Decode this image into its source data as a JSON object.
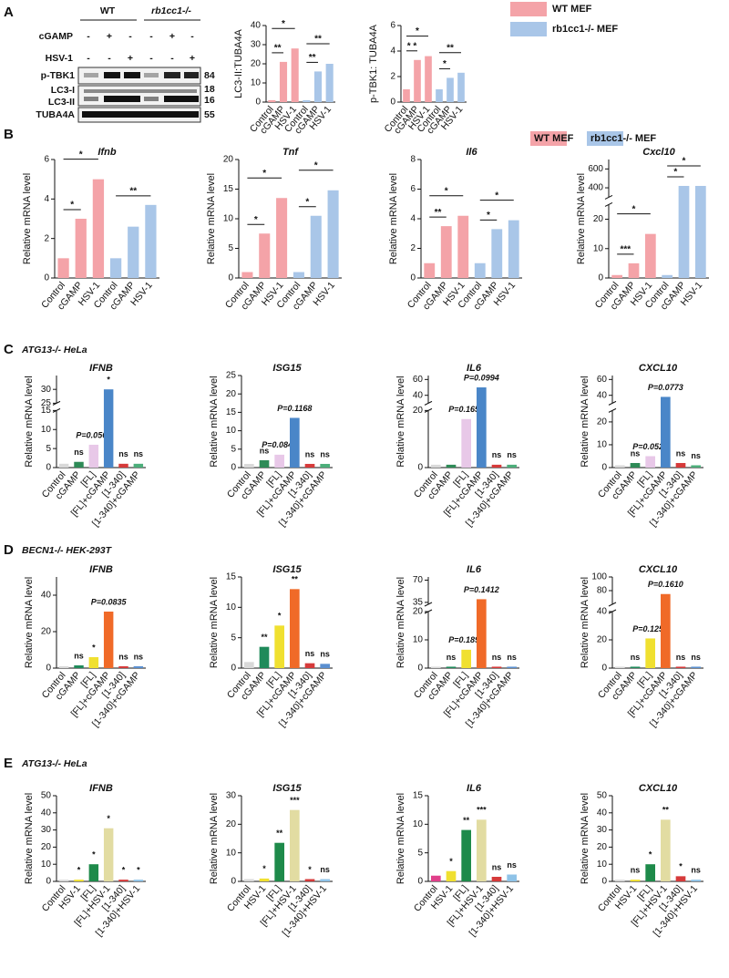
{
  "panels": [
    {
      "label": "A"
    },
    {
      "label": "B"
    },
    {
      "label": "C",
      "subtitle": "ATG13-/- HeLa"
    },
    {
      "label": "D",
      "subtitle": "BECN1-/- HEK-293T"
    },
    {
      "label": "E",
      "subtitle": "ATG13-/- HeLa"
    }
  ],
  "legend": [
    {
      "name": "WT MEF",
      "color": "#f4a3a8"
    },
    {
      "name": "rb1cc1-/- MEF",
      "color": "#a9c6e8"
    }
  ],
  "blot": {
    "groups": [
      "WT",
      "rb1cc1-/-"
    ],
    "treatments": [
      {
        "name": "cGAMP",
        "signs": [
          "-",
          "+",
          "-",
          "-",
          "+",
          "-"
        ]
      },
      {
        "name": "HSV-1",
        "signs": [
          "-",
          "-",
          "+",
          "-",
          "-",
          "+"
        ]
      }
    ],
    "bands": [
      "p-TBK1",
      "LC3-I",
      "LC3-II",
      "TUBA4A"
    ],
    "markers": [
      "84",
      "18",
      "16",
      "55"
    ]
  },
  "chart_data": [
    {
      "type": "bar",
      "ylabel": "LC3-II:TUBA4A",
      "categories": [
        "Control",
        "cGAMP",
        "HSV-1",
        "Control",
        "cGAMP",
        "HSV-1"
      ],
      "values": [
        1,
        21,
        28,
        1,
        16,
        20
      ],
      "colors": [
        "#f4a3a8",
        "#f4a3a8",
        "#f4a3a8",
        "#a9c6e8",
        "#a9c6e8",
        "#a9c6e8"
      ],
      "ylim": [
        0,
        40
      ],
      "yticks": [
        0,
        10,
        20,
        30,
        40
      ],
      "comparisons": [
        {
          "from": 0,
          "to": 1,
          "label": "**"
        },
        {
          "from": 0,
          "to": 2,
          "label": "*"
        },
        {
          "from": 3,
          "to": 4,
          "label": "**"
        },
        {
          "from": 3,
          "to": 5,
          "label": "**"
        }
      ]
    },
    {
      "type": "bar",
      "ylabel": "p-TBK1: TUBA4A",
      "categories": [
        "Control",
        "cGAMP",
        "HSV-1",
        "Control",
        "cGAMP",
        "HSV-1"
      ],
      "values": [
        1,
        3.3,
        3.6,
        1,
        1.9,
        2.3
      ],
      "colors": [
        "#f4a3a8",
        "#f4a3a8",
        "#f4a3a8",
        "#a9c6e8",
        "#a9c6e8",
        "#a9c6e8"
      ],
      "ylim": [
        0,
        6
      ],
      "yticks": [
        0,
        2,
        4,
        6
      ],
      "comparisons": [
        {
          "from": 0,
          "to": 1,
          "label": "* *"
        },
        {
          "from": 0,
          "to": 2,
          "label": "*"
        },
        {
          "from": 3,
          "to": 4,
          "label": "*"
        },
        {
          "from": 3,
          "to": 5,
          "label": "**"
        }
      ]
    },
    {
      "type": "bar",
      "title": "Ifnb",
      "ylabel": "Relative mRNA level",
      "categories": [
        "Control",
        "cGAMP",
        "HSV-1",
        "Control",
        "cGAMP",
        "HSV-1"
      ],
      "values": [
        1,
        3,
        5,
        1,
        2.6,
        3.7
      ],
      "colors": [
        "#f4a3a8",
        "#f4a3a8",
        "#f4a3a8",
        "#a9c6e8",
        "#a9c6e8",
        "#a9c6e8"
      ],
      "ylim": [
        0,
        6
      ],
      "yticks": [
        0,
        2,
        4,
        6
      ],
      "comparisons": [
        {
          "from": 0,
          "to": 1,
          "label": "*"
        },
        {
          "from": 0,
          "to": 2,
          "label": "*"
        },
        {
          "from": 3,
          "to": 5,
          "label": "**"
        }
      ]
    },
    {
      "type": "bar",
      "title": "Tnf",
      "ylabel": "Relative mRNA level",
      "categories": [
        "Control",
        "cGAMP",
        "HSV-1",
        "Control",
        "cGAMP",
        "HSV-1"
      ],
      "values": [
        1,
        7.5,
        13.5,
        1,
        10.5,
        14.8
      ],
      "colors": [
        "#f4a3a8",
        "#f4a3a8",
        "#f4a3a8",
        "#a9c6e8",
        "#a9c6e8",
        "#a9c6e8"
      ],
      "ylim": [
        0,
        20
      ],
      "yticks": [
        0,
        5,
        10,
        15,
        20
      ],
      "comparisons": [
        {
          "from": 0,
          "to": 1,
          "label": "*"
        },
        {
          "from": 0,
          "to": 2,
          "label": "*"
        },
        {
          "from": 3,
          "to": 4,
          "label": "*"
        },
        {
          "from": 3,
          "to": 5,
          "label": "*"
        }
      ]
    },
    {
      "type": "bar",
      "title": "Il6",
      "ylabel": "Relative mRNA level",
      "categories": [
        "Control",
        "cGAMP",
        "HSV-1",
        "Control",
        "cGAMP",
        "HSV-1"
      ],
      "values": [
        1,
        3.5,
        4.2,
        1,
        3.3,
        3.9
      ],
      "colors": [
        "#f4a3a8",
        "#f4a3a8",
        "#f4a3a8",
        "#a9c6e8",
        "#a9c6e8",
        "#a9c6e8"
      ],
      "ylim": [
        0,
        8
      ],
      "yticks": [
        0,
        2,
        4,
        6,
        8
      ],
      "comparisons": [
        {
          "from": 0,
          "to": 1,
          "label": "**"
        },
        {
          "from": 0,
          "to": 2,
          "label": "*"
        },
        {
          "from": 3,
          "to": 4,
          "label": "*"
        },
        {
          "from": 3,
          "to": 5,
          "label": "*"
        }
      ]
    },
    {
      "type": "bar",
      "title": "Cxcl10",
      "ylabel": "Relative mRNA level",
      "categories": [
        "Control",
        "cGAMP",
        "HSV-1",
        "Control",
        "cGAMP",
        "HSV-1"
      ],
      "values": [
        1,
        5,
        15,
        1,
        420,
        420
      ],
      "colors": [
        "#f4a3a8",
        "#f4a3a8",
        "#f4a3a8",
        "#a9c6e8",
        "#a9c6e8",
        "#a9c6e8"
      ],
      "ysegments": [
        {
          "lim": [
            0,
            25
          ],
          "ticks": [
            0,
            10,
            20
          ]
        },
        {
          "lim": [
            300,
            700
          ],
          "ticks": [
            400,
            600
          ]
        }
      ],
      "comparisons": [
        {
          "from": 0,
          "to": 1,
          "label": "***"
        },
        {
          "from": 0,
          "to": 2,
          "label": "*"
        },
        {
          "from": 3,
          "to": 4,
          "label": "*"
        },
        {
          "from": 3,
          "to": 5,
          "label": "*"
        }
      ]
    },
    {
      "type": "bar",
      "title": "IFNB",
      "ylabel": "Relative mRNA level",
      "categories": [
        "Control",
        "cGAMP",
        "[FL]",
        "[FL]+cGAMP",
        "[1-340]",
        "[1-340]+cGAMP"
      ],
      "values": [
        1,
        1.5,
        6,
        30,
        1,
        1
      ],
      "colors": [
        "#d9d9d9",
        "#2e8b57",
        "#e8c8e8",
        "#4a86c8",
        "#d63a3a",
        "#4cae7a"
      ],
      "ysegments": [
        {
          "lim": [
            0,
            15
          ],
          "ticks": [
            0,
            5,
            10,
            15
          ]
        },
        {
          "lim": [
            25,
            35
          ],
          "ticks": [
            25,
            30
          ]
        }
      ],
      "annotations": [
        null,
        "ns",
        "P=0.0565",
        "*",
        "ns",
        "ns"
      ]
    },
    {
      "type": "bar",
      "title": "ISG15",
      "ylabel": "Relative mRNA level",
      "categories": [
        "Control",
        "cGAMP",
        "[FL]",
        "[FL]+cGAMP",
        "[1-340]",
        "[1-340]+cGAMP"
      ],
      "values": [
        1,
        2,
        3.5,
        13.5,
        1,
        1
      ],
      "colors": [
        "#d9d9d9",
        "#2e8b57",
        "#e8c8e8",
        "#4a86c8",
        "#d63a3a",
        "#4cae7a"
      ],
      "ylim": [
        0,
        25
      ],
      "yticks": [
        0,
        5,
        10,
        15,
        20,
        25
      ],
      "annotations": [
        null,
        "ns",
        "P=0.0841",
        "P=0.1168",
        "ns",
        "ns"
      ]
    },
    {
      "type": "bar",
      "title": "IL6",
      "ylabel": "Relative mRNA level",
      "categories": [
        "Control",
        "cGAMP",
        "[FL]",
        "[FL]+cGAMP",
        "[1-340]",
        "[1-340]+cGAMP"
      ],
      "values": [
        1,
        1,
        17,
        50,
        1,
        1
      ],
      "colors": [
        "#d9d9d9",
        "#2e8b57",
        "#e8c8e8",
        "#4a86c8",
        "#d63a3a",
        "#4cae7a"
      ],
      "ysegments": [
        {
          "lim": [
            0,
            20
          ],
          "ticks": [
            0,
            20
          ]
        },
        {
          "lim": [
            30,
            65
          ],
          "ticks": [
            40,
            60
          ]
        }
      ],
      "annotations": [
        null,
        null,
        "P=0.1657",
        "P=0.0994",
        "ns",
        "ns"
      ]
    },
    {
      "type": "bar",
      "title": "CXCL10",
      "ylabel": "Relative mRNA level",
      "categories": [
        "Control",
        "cGAMP",
        "[FL]",
        "[FL]+cGAMP",
        "[1-340]",
        "[1-340]+cGAMP"
      ],
      "values": [
        1,
        2,
        5,
        38,
        2,
        1
      ],
      "colors": [
        "#d9d9d9",
        "#2e8b57",
        "#e8c8e8",
        "#4a86c8",
        "#d63a3a",
        "#4cae7a"
      ],
      "ysegments": [
        {
          "lim": [
            0,
            25
          ],
          "ticks": [
            0,
            10,
            20
          ]
        },
        {
          "lim": [
            30,
            65
          ],
          "ticks": [
            40,
            60
          ]
        }
      ],
      "annotations": [
        null,
        "ns",
        "P=0.0525",
        "P=0.0773",
        "ns",
        "ns"
      ]
    },
    {
      "type": "bar",
      "title": "IFNB",
      "ylabel": "Relative mRNA level",
      "categories": [
        "Control",
        "cGAMP",
        "[FL]",
        "[FL]+cGAMP",
        "[1-340]",
        "[1-340]+cGAMP"
      ],
      "values": [
        1,
        1.5,
        6,
        31,
        1,
        1
      ],
      "colors": [
        "#d9d9d9",
        "#1f8a5a",
        "#f0e030",
        "#f06a28",
        "#d63a3a",
        "#5a8fd0"
      ],
      "ylim": [
        0,
        50
      ],
      "yticks": [
        0,
        20,
        40
      ],
      "annotations": [
        null,
        "ns",
        "*",
        "P=0.0835",
        "ns",
        "ns"
      ]
    },
    {
      "type": "bar",
      "title": "ISG15",
      "ylabel": "Relative mRNA level",
      "categories": [
        "Control",
        "cGAMP",
        "[FL]",
        "[FL]+cGAMP",
        "[1-340]",
        "[1-340]+cGAMP"
      ],
      "values": [
        1,
        3.5,
        7,
        13,
        0.8,
        0.7
      ],
      "colors": [
        "#d9d9d9",
        "#1f8a5a",
        "#f0e030",
        "#f06a28",
        "#d63a3a",
        "#5a8fd0"
      ],
      "ylim": [
        0,
        15
      ],
      "yticks": [
        0,
        5,
        10,
        15
      ],
      "annotations": [
        null,
        "**",
        "*",
        "**",
        "ns",
        "ns"
      ]
    },
    {
      "type": "bar",
      "title": "IL6",
      "ylabel": "Relative mRNA level",
      "categories": [
        "Control",
        "cGAMP",
        "[FL]",
        "[FL]+cGAMP",
        "[1-340]",
        "[1-340]+cGAMP"
      ],
      "values": [
        0.5,
        0.5,
        6.5,
        40,
        0.5,
        0.5
      ],
      "colors": [
        "#d9d9d9",
        "#1f8a5a",
        "#f0e030",
        "#f06a28",
        "#d63a3a",
        "#5a8fd0"
      ],
      "ysegments": [
        {
          "lim": [
            0,
            20
          ],
          "ticks": [
            0,
            10,
            20
          ]
        },
        {
          "lim": [
            32,
            75
          ],
          "ticks": [
            35,
            70
          ]
        }
      ],
      "annotations": [
        null,
        "ns",
        "P=0.1890",
        "P=0.1412",
        "ns",
        "ns"
      ]
    },
    {
      "type": "bar",
      "title": "CXCL10",
      "ylabel": "Relative mRNA level",
      "categories": [
        "Control",
        "cGAMP",
        "[FL]",
        "[FL]+cGAMP",
        "[1-340]",
        "[1-340]+cGAMP"
      ],
      "values": [
        1,
        1,
        21,
        75,
        1,
        1
      ],
      "colors": [
        "#d9d9d9",
        "#1f8a5a",
        "#f0e030",
        "#f06a28",
        "#d63a3a",
        "#5a8fd0"
      ],
      "ysegments": [
        {
          "lim": [
            0,
            40
          ],
          "ticks": [
            0,
            20,
            40
          ]
        },
        {
          "lim": [
            60,
            100
          ],
          "ticks": [
            80,
            100
          ]
        }
      ],
      "annotations": [
        null,
        "ns",
        "P=0.1251",
        "P=0.1610",
        "ns",
        "ns"
      ]
    },
    {
      "type": "bar",
      "title": "IFNB",
      "ylabel": "Relative mRNA level",
      "categories": [
        "Control",
        "HSV-1",
        "[FL]",
        "[FL]+HSV-1",
        "[1-340]",
        "[1-340]+HSV-1"
      ],
      "values": [
        1,
        1,
        10,
        31,
        1,
        1
      ],
      "colors": [
        "#d9d9d9",
        "#f0e030",
        "#1e8a4a",
        "#e2dca2",
        "#d63a3a",
        "#8fc3e8"
      ],
      "ylim": [
        0,
        50
      ],
      "yticks": [
        0,
        10,
        20,
        30,
        40,
        50
      ],
      "annotations": [
        null,
        "*",
        "*",
        "*",
        "*",
        "*"
      ]
    },
    {
      "type": "bar",
      "title": "ISG15",
      "ylabel": "Relative mRNA level",
      "categories": [
        "Control",
        "HSV-1",
        "[FL]",
        "[FL]+HSV-1",
        "[1-340]",
        "[1-340]+HSV-1"
      ],
      "values": [
        0.8,
        1,
        13.5,
        25,
        0.8,
        0.8
      ],
      "colors": [
        "#d9d9d9",
        "#f0e030",
        "#1e8a4a",
        "#e2dca2",
        "#d63a3a",
        "#8fc3e8"
      ],
      "ylim": [
        0,
        30
      ],
      "yticks": [
        0,
        10,
        20,
        30
      ],
      "annotations": [
        null,
        "*",
        "**",
        "***",
        "*",
        "ns"
      ]
    },
    {
      "type": "bar",
      "title": "IL6",
      "ylabel": "Relative mRNA level",
      "categories": [
        "Control",
        "HSV-1",
        "[FL]",
        "[FL]+HSV-1",
        "[1-340]",
        "[1-340]+HSV-1"
      ],
      "values": [
        1,
        1.8,
        9,
        10.8,
        0.8,
        1.2
      ],
      "colors": [
        "#e0408a",
        "#f0e030",
        "#1e8a4a",
        "#e2dca2",
        "#d63a3a",
        "#8fc3e8"
      ],
      "ylim": [
        0,
        15
      ],
      "yticks": [
        0,
        5,
        10,
        15
      ],
      "annotations": [
        null,
        "*",
        "**",
        "***",
        "ns",
        "ns"
      ]
    },
    {
      "type": "bar",
      "title": "CXCL10",
      "ylabel": "Relative mRNA level",
      "categories": [
        "Control",
        "HSV-1",
        "[FL]",
        "[FL]+HSV-1",
        "[1-340]",
        "[1-340]+HSV-1"
      ],
      "values": [
        1,
        1,
        10,
        36,
        3,
        1
      ],
      "colors": [
        "#d9d9d9",
        "#f0e030",
        "#1e8a4a",
        "#e2dca2",
        "#d63a3a",
        "#8fc3e8"
      ],
      "ylim": [
        0,
        50
      ],
      "yticks": [
        0,
        10,
        20,
        30,
        40,
        50
      ],
      "annotations": [
        null,
        "ns",
        "*",
        "**",
        "*",
        "ns"
      ]
    }
  ]
}
